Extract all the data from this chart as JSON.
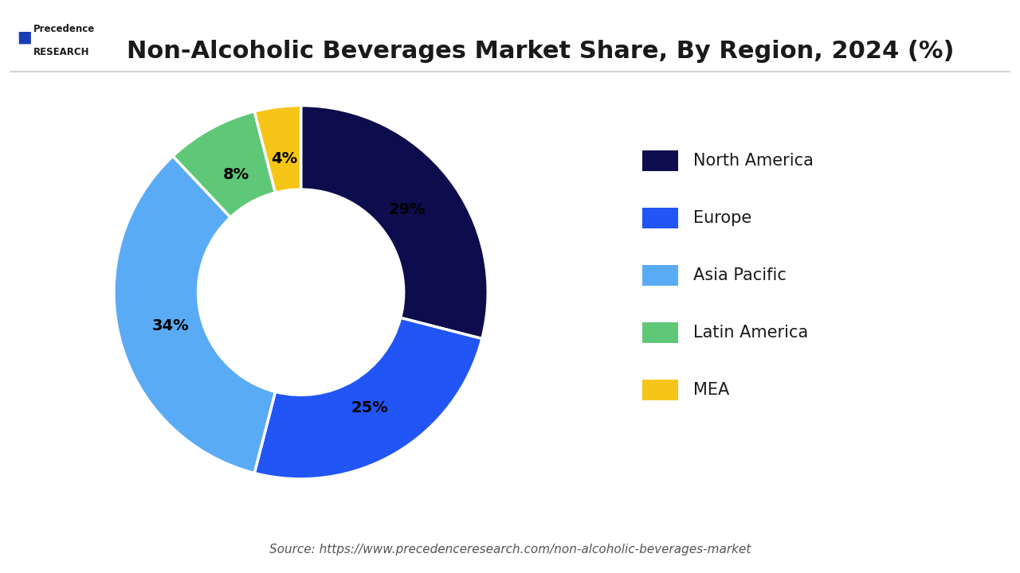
{
  "title": "Non-Alcoholic Beverages Market Share, By Region, 2024 (%)",
  "title_fontsize": 22,
  "segments": [
    "North America",
    "Europe",
    "Asia Pacific",
    "Latin America",
    "MEA"
  ],
  "values": [
    29,
    25,
    34,
    8,
    4
  ],
  "colors": [
    "#0d0d4d",
    "#2255f5",
    "#5aabf5",
    "#5fc878",
    "#f5c518"
  ],
  "labels": [
    "29%",
    "25%",
    "34%",
    "8%",
    "4%"
  ],
  "bg_color": "#ffffff",
  "source_text": "Source: https://www.precedenceresearch.com/non-alcoholic-beverages-market",
  "logo_text_line1": "Precedence",
  "logo_text_line2": "RESEARCH"
}
